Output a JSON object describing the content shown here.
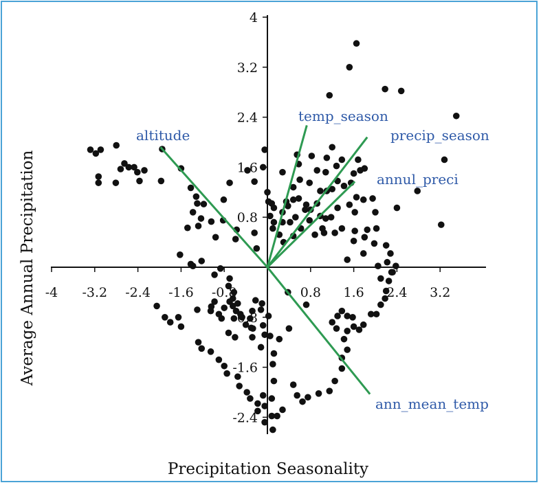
{
  "chart_data": {
    "type": "scatter",
    "xlabel": "Precipitation Seasonality",
    "ylabel": "Average Annual Precipitation",
    "xlim": [
      -4,
      3.5
    ],
    "ylim": [
      -2.6,
      4
    ],
    "x_ticks": [
      -4,
      -3.2,
      -2.4,
      -1.6,
      -0.8,
      0.8,
      1.6,
      2.4,
      3.2
    ],
    "x_tick_labels": [
      "-4",
      "-3.2",
      "-2.4",
      "-1.6",
      "-0.8",
      "0.8",
      "1.6",
      "2.4",
      "3.2"
    ],
    "y_ticks": [
      4,
      3.2,
      2.4,
      1.6,
      0.8,
      -0.8,
      -1.6,
      -2.4
    ],
    "y_tick_labels": [
      "4",
      "3.2",
      "2.4",
      "1.6",
      "0.8",
      "-0.8",
      "-1.6",
      "-2.4"
    ],
    "grid": false,
    "point_color": "#111111",
    "vector_color": "#2e9a52",
    "label_color": "#2f5aa8",
    "frame_color": "#4aa3d6",
    "vectors": [
      {
        "name": "altitude",
        "x": -1.98,
        "y": 1.92
      },
      {
        "name": "temp_season",
        "x": 0.73,
        "y": 2.27
      },
      {
        "name": "precip_season",
        "x": 1.85,
        "y": 2.08
      },
      {
        "name": "annul_preci",
        "x": 1.62,
        "y": 1.37
      },
      {
        "name": "ann_mean_temp",
        "x": 1.9,
        "y": -2.03
      }
    ],
    "points": [
      [
        -3.28,
        1.88
      ],
      [
        -3.18,
        1.82
      ],
      [
        -3.09,
        1.88
      ],
      [
        -2.8,
        1.95
      ],
      [
        -3.13,
        1.45
      ],
      [
        -3.13,
        1.35
      ],
      [
        -2.81,
        1.35
      ],
      [
        -2.72,
        1.57
      ],
      [
        -2.65,
        1.66
      ],
      [
        -2.57,
        1.6
      ],
      [
        -2.47,
        1.6
      ],
      [
        -2.41,
        1.52
      ],
      [
        -2.37,
        1.38
      ],
      [
        -2.28,
        1.55
      ],
      [
        -1.95,
        1.89
      ],
      [
        -1.97,
        1.38
      ],
      [
        -1.6,
        1.58
      ],
      [
        -1.42,
        1.27
      ],
      [
        -1.32,
        1.13
      ],
      [
        -1.3,
        1.02
      ],
      [
        -1.18,
        1.01
      ],
      [
        -1.38,
        0.88
      ],
      [
        -1.23,
        0.78
      ],
      [
        -1.04,
        0.73
      ],
      [
        -0.81,
        1.08
      ],
      [
        -1.48,
        0.63
      ],
      [
        -1.28,
        0.66
      ],
      [
        -0.82,
        0.75
      ],
      [
        -0.96,
        0.48
      ],
      [
        -0.05,
        1.88
      ],
      [
        -0.7,
        1.35
      ],
      [
        -0.37,
        1.55
      ],
      [
        -0.24,
        1.37
      ],
      [
        -0.08,
        1.6
      ],
      [
        -0.57,
        0.6
      ],
      [
        -0.59,
        0.45
      ],
      [
        -0.24,
        0.55
      ],
      [
        -0.2,
        0.3
      ],
      [
        -1.62,
        0.2
      ],
      [
        -1.42,
        0.05
      ],
      [
        -1.38,
        0.02
      ],
      [
        -1.22,
        0.1
      ],
      [
        -0.98,
        -0.12
      ],
      [
        -0.87,
        -0.02
      ],
      [
        -0.7,
        -0.18
      ],
      [
        -0.72,
        -0.3
      ],
      [
        -0.62,
        -0.4
      ],
      [
        -0.64,
        -0.5
      ],
      [
        -0.7,
        -0.55
      ],
      [
        -0.55,
        -0.58
      ],
      [
        -0.58,
        -0.7
      ],
      [
        -0.5,
        -0.75
      ],
      [
        -0.47,
        -0.8
      ],
      [
        -0.62,
        -0.82
      ],
      [
        -0.64,
        -0.62
      ],
      [
        -0.4,
        -0.92
      ],
      [
        -0.27,
        -0.98
      ],
      [
        -0.1,
        -0.58
      ],
      [
        -2.05,
        -0.62
      ],
      [
        -1.9,
        -0.8
      ],
      [
        -1.8,
        -0.88
      ],
      [
        -1.65,
        -0.8
      ],
      [
        -1.6,
        -0.95
      ],
      [
        -1.3,
        -0.68
      ],
      [
        -1.04,
        -0.63
      ],
      [
        -1.05,
        -0.7
      ],
      [
        -0.98,
        -0.55
      ],
      [
        -0.9,
        -0.75
      ],
      [
        -0.85,
        -0.82
      ],
      [
        -0.8,
        -0.65
      ],
      [
        -0.32,
        -0.82
      ],
      [
        -0.28,
        -0.7
      ],
      [
        -0.22,
        -0.53
      ],
      [
        -0.12,
        -0.68
      ],
      [
        -0.08,
        -0.93
      ],
      [
        -0.05,
        -1.08
      ],
      [
        -0.28,
        -1.12
      ],
      [
        -0.12,
        -1.28
      ],
      [
        -0.3,
        -0.97
      ],
      [
        -0.72,
        -1.05
      ],
      [
        -0.6,
        -1.12
      ],
      [
        -1.28,
        -1.2
      ],
      [
        -1.22,
        -1.3
      ],
      [
        -1.05,
        -1.35
      ],
      [
        -0.9,
        -1.48
      ],
      [
        -0.8,
        -1.58
      ],
      [
        -0.75,
        -1.7
      ],
      [
        -0.55,
        -1.75
      ],
      [
        -0.52,
        -1.9
      ],
      [
        -0.38,
        -2.0
      ],
      [
        -0.32,
        -2.1
      ],
      [
        -0.18,
        -2.18
      ],
      [
        -0.08,
        -2.05
      ],
      [
        -0.05,
        -2.22
      ],
      [
        -0.18,
        -2.3
      ],
      [
        -0.05,
        -2.48
      ],
      [
        0.08,
        -2.38
      ],
      [
        0.1,
        -2.6
      ],
      [
        0.18,
        -2.38
      ],
      [
        0.28,
        -2.28
      ],
      [
        0.08,
        -2.1
      ],
      [
        0.12,
        -1.82
      ],
      [
        0.1,
        -1.55
      ],
      [
        0.12,
        -1.38
      ],
      [
        0.05,
        -1.1
      ],
      [
        0.02,
        -0.78
      ],
      [
        0.4,
        -0.98
      ],
      [
        0.22,
        -1.15
      ],
      [
        0.48,
        -1.88
      ],
      [
        0.55,
        -2.05
      ],
      [
        0.65,
        -2.15
      ],
      [
        0.75,
        -2.08
      ],
      [
        0.95,
        -2.02
      ],
      [
        1.15,
        -1.98
      ],
      [
        1.25,
        -1.82
      ],
      [
        1.38,
        -1.62
      ],
      [
        1.38,
        -1.45
      ],
      [
        1.48,
        -1.32
      ],
      [
        1.42,
        -1.15
      ],
      [
        1.28,
        -0.98
      ],
      [
        1.2,
        -0.88
      ],
      [
        1.3,
        -0.78
      ],
      [
        1.38,
        -0.7
      ],
      [
        1.48,
        -0.78
      ],
      [
        1.58,
        -0.8
      ],
      [
        1.6,
        -0.95
      ],
      [
        1.48,
        -1.02
      ],
      [
        1.7,
        -1.0
      ],
      [
        1.78,
        -0.92
      ],
      [
        1.92,
        -0.75
      ],
      [
        2.02,
        -0.75
      ],
      [
        2.1,
        -0.6
      ],
      [
        2.18,
        -0.5
      ],
      [
        2.2,
        -0.38
      ],
      [
        2.25,
        -0.22
      ],
      [
        2.3,
        -0.08
      ],
      [
        2.22,
        0.08
      ],
      [
        2.28,
        0.22
      ],
      [
        2.1,
        -0.18
      ],
      [
        2.05,
        0.02
      ],
      [
        1.98,
        0.38
      ],
      [
        1.78,
        0.22
      ],
      [
        1.8,
        0.48
      ],
      [
        1.48,
        0.12
      ],
      [
        0.72,
        -0.6
      ],
      [
        0.38,
        -0.4
      ],
      [
        2.38,
        0.02
      ],
      [
        2.02,
        0.62
      ],
      [
        2.32,
        -0.08
      ],
      [
        2.2,
        0.35
      ],
      [
        0.0,
        1.2
      ],
      [
        0.02,
        1.05
      ],
      [
        0.08,
        1.02
      ],
      [
        0.12,
        0.95
      ],
      [
        0.05,
        0.82
      ],
      [
        0.12,
        0.72
      ],
      [
        0.1,
        0.62
      ],
      [
        0.22,
        0.52
      ],
      [
        0.28,
        0.88
      ],
      [
        0.35,
        1.05
      ],
      [
        0.38,
        0.98
      ],
      [
        0.48,
        1.08
      ],
      [
        0.58,
        1.1
      ],
      [
        0.7,
        0.92
      ],
      [
        0.72,
        1.0
      ],
      [
        0.52,
        0.8
      ],
      [
        0.42,
        0.72
      ],
      [
        0.28,
        0.72
      ],
      [
        0.3,
        0.4
      ],
      [
        0.48,
        0.5
      ],
      [
        0.62,
        0.62
      ],
      [
        0.78,
        0.75
      ],
      [
        0.8,
        0.92
      ],
      [
        0.92,
        1.02
      ],
      [
        0.98,
        0.82
      ],
      [
        1.08,
        0.78
      ],
      [
        1.18,
        0.8
      ],
      [
        1.3,
        0.95
      ],
      [
        1.52,
        1.0
      ],
      [
        1.65,
        1.12
      ],
      [
        1.62,
        0.88
      ],
      [
        1.78,
        1.08
      ],
      [
        1.95,
        1.1
      ],
      [
        2.0,
        0.88
      ],
      [
        0.88,
        0.52
      ],
      [
        1.02,
        0.62
      ],
      [
        1.05,
        0.55
      ],
      [
        1.25,
        0.55
      ],
      [
        1.38,
        0.62
      ],
      [
        1.62,
        0.58
      ],
      [
        1.6,
        0.42
      ],
      [
        1.85,
        0.6
      ],
      [
        0.28,
        1.52
      ],
      [
        0.48,
        1.28
      ],
      [
        0.6,
        1.4
      ],
      [
        0.78,
        1.35
      ],
      [
        0.98,
        1.22
      ],
      [
        1.1,
        1.22
      ],
      [
        1.2,
        1.25
      ],
      [
        1.3,
        1.38
      ],
      [
        1.42,
        1.3
      ],
      [
        1.55,
        1.35
      ],
      [
        1.6,
        1.5
      ],
      [
        1.72,
        1.55
      ],
      [
        1.8,
        1.58
      ],
      [
        1.68,
        1.72
      ],
      [
        1.28,
        1.62
      ],
      [
        1.38,
        1.72
      ],
      [
        1.1,
        1.75
      ],
      [
        1.2,
        1.92
      ],
      [
        0.92,
        1.55
      ],
      [
        1.08,
        1.52
      ],
      [
        0.58,
        1.65
      ],
      [
        0.82,
        1.78
      ],
      [
        0.55,
        1.8
      ],
      [
        1.15,
        2.75
      ],
      [
        1.52,
        3.2
      ],
      [
        1.65,
        3.58
      ],
      [
        2.18,
        2.85
      ],
      [
        2.48,
        2.82
      ],
      [
        3.28,
        1.72
      ],
      [
        3.5,
        2.42
      ],
      [
        2.78,
        1.22
      ],
      [
        3.22,
        0.68
      ],
      [
        2.4,
        0.95
      ]
    ]
  }
}
